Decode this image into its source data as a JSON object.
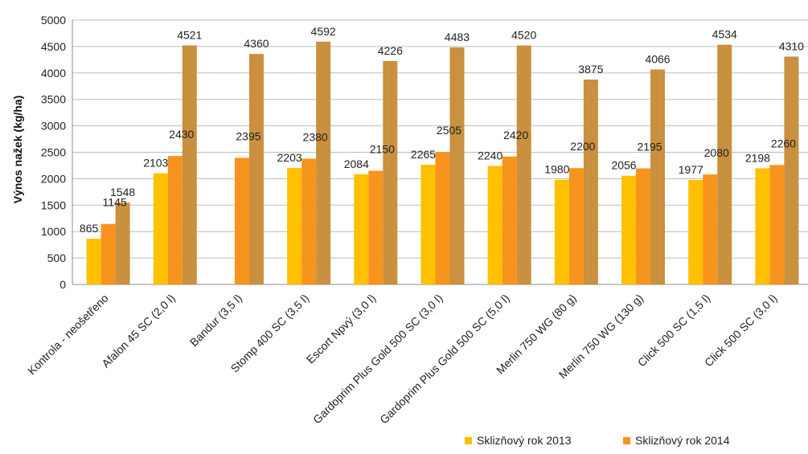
{
  "chart_data": {
    "type": "bar",
    "title": "",
    "xlabel": "",
    "ylabel": "Výnos nažek (kg/ha)",
    "ylim": [
      0,
      5000
    ],
    "yticks": [
      0,
      500,
      1000,
      1500,
      2000,
      2500,
      3000,
      3500,
      4000,
      4500,
      5000
    ],
    "grid": true,
    "legend_position": "bottom-right",
    "categories": [
      "Kontrola - neošetřeno",
      "Afalon 45 SC (2,0 l)",
      "Bandur (3,5 l)",
      "Stomp 400 SC (3,5 l)",
      "Escort Npvý (3,0 l)",
      "Gardoprim Plus Gold 500 SC (3,0 l)",
      "Gardoprim Plus Gold  500 SC (5,0 l)",
      "Merlin 750 WG (80 g)",
      "Merlin 750 WG (130 g)",
      "Click 500 SC (1,5 l)",
      "Click 500 SC (3,0 l)"
    ],
    "series": [
      {
        "name": "Sklizňový rok 2013",
        "color": "#FFC000",
        "in_legend": true,
        "values": [
          865,
          2103,
          null,
          2203,
          2084,
          2265,
          2240,
          1980,
          2056,
          1977,
          2198
        ]
      },
      {
        "name": "Sklizňový rok 2014",
        "color": "#F7941D",
        "in_legend": true,
        "values": [
          1145,
          2430,
          2395,
          2380,
          2150,
          2505,
          2420,
          2200,
          2195,
          2080,
          2260
        ]
      },
      {
        "name": "",
        "color": "#C8903F",
        "in_legend": false,
        "values": [
          1548,
          4521,
          4360,
          4592,
          4226,
          4483,
          4520,
          3875,
          4066,
          4534,
          4310
        ]
      }
    ]
  }
}
